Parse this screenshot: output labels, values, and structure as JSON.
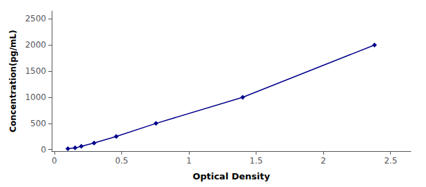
{
  "chart_data": {
    "type": "line",
    "x": [
      0.1,
      0.154,
      0.2,
      0.295,
      0.46,
      0.755,
      1.4,
      2.38
    ],
    "values": [
      15.6,
      31.2,
      62.5,
      125,
      250,
      500,
      1000,
      2000
    ],
    "color": "#00008B",
    "marker": "diamond",
    "xlabel": "Optical Density",
    "ylabel": "Concentration(pg/mL)",
    "xlim": [
      -0.02,
      2.65
    ],
    "ylim": [
      -30,
      2650
    ],
    "xticks": [
      0,
      0.5,
      1,
      1.5,
      2,
      2.5
    ],
    "yticks": [
      0,
      500,
      1000,
      1500,
      2000,
      2500
    ],
    "grid": false
  }
}
